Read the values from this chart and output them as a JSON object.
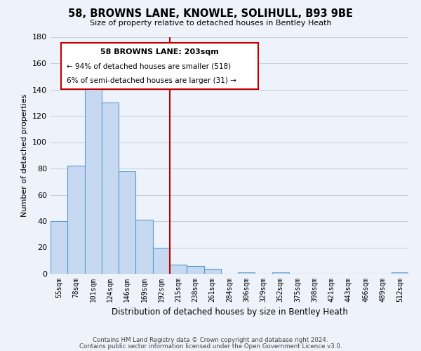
{
  "title": "58, BROWNS LANE, KNOWLE, SOLIHULL, B93 9BE",
  "subtitle": "Size of property relative to detached houses in Bentley Heath",
  "xlabel": "Distribution of detached houses by size in Bentley Heath",
  "ylabel": "Number of detached properties",
  "bar_labels": [
    "55sqm",
    "78sqm",
    "101sqm",
    "124sqm",
    "146sqm",
    "169sqm",
    "192sqm",
    "215sqm",
    "238sqm",
    "261sqm",
    "284sqm",
    "306sqm",
    "329sqm",
    "352sqm",
    "375sqm",
    "398sqm",
    "421sqm",
    "443sqm",
    "466sqm",
    "489sqm",
    "512sqm"
  ],
  "bar_values": [
    40,
    82,
    143,
    130,
    78,
    41,
    20,
    7,
    6,
    4,
    0,
    1,
    0,
    1,
    0,
    0,
    0,
    0,
    0,
    0,
    1
  ],
  "bar_color": "#c6d9f0",
  "bar_edge_color": "#5b9bd5",
  "ylim": [
    0,
    180
  ],
  "yticks": [
    0,
    20,
    40,
    60,
    80,
    100,
    120,
    140,
    160,
    180
  ],
  "property_line_color": "#c00000",
  "annotation_title": "58 BROWNS LANE: 203sqm",
  "annotation_line1": "← 94% of detached houses are smaller (518)",
  "annotation_line2": "6% of semi-detached houses are larger (31) →",
  "footer_line1": "Contains HM Land Registry data © Crown copyright and database right 2024.",
  "footer_line2": "Contains public sector information licensed under the Open Government Licence v3.0.",
  "background_color": "#eef3fb",
  "grid_color": "#c8d0dc",
  "box_color": "#ffffff",
  "box_edge_color": "#c00000"
}
